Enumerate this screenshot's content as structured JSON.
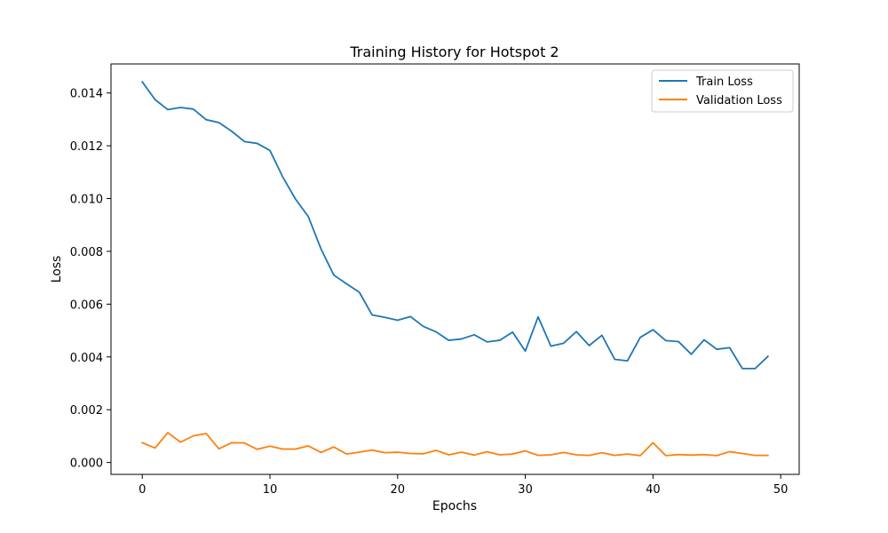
{
  "chart_data": {
    "type": "line",
    "title": "Training History for Hotspot 2",
    "xlabel": "Epochs",
    "ylabel": "Loss",
    "xlim": [
      -2.45,
      51.45
    ],
    "ylim": [
      -0.00045,
      0.0151
    ],
    "xticks": [
      0,
      10,
      20,
      30,
      40,
      50
    ],
    "xtick_labels": [
      "0",
      "10",
      "20",
      "30",
      "40",
      "50"
    ],
    "yticks": [
      0,
      0.002,
      0.004,
      0.006,
      0.008,
      0.01,
      0.012,
      0.014
    ],
    "ytick_labels": [
      "0.000",
      "0.002",
      "0.004",
      "0.006",
      "0.008",
      "0.010",
      "0.012",
      "0.014"
    ],
    "grid": false,
    "legend_position": "top-right",
    "x": [
      0,
      1,
      2,
      3,
      4,
      5,
      6,
      7,
      8,
      9,
      10,
      11,
      12,
      13,
      14,
      15,
      16,
      17,
      18,
      19,
      20,
      21,
      22,
      23,
      24,
      25,
      26,
      27,
      28,
      29,
      30,
      31,
      32,
      33,
      34,
      35,
      36,
      37,
      38,
      39,
      40,
      41,
      42,
      43,
      44,
      45,
      46,
      47,
      48,
      49
    ],
    "series": [
      {
        "name": "Train Loss",
        "color": "#1f77b4",
        "values": [
          0.01442,
          0.01375,
          0.01337,
          0.01345,
          0.01339,
          0.01299,
          0.01288,
          0.01255,
          0.01216,
          0.01209,
          0.01182,
          0.01082,
          0.00998,
          0.00932,
          0.00809,
          0.0071,
          0.00677,
          0.00645,
          0.00559,
          0.0055,
          0.00539,
          0.00553,
          0.00516,
          0.00495,
          0.00463,
          0.00468,
          0.00484,
          0.00457,
          0.00463,
          0.00494,
          0.00422,
          0.00552,
          0.00441,
          0.00452,
          0.00496,
          0.00443,
          0.00482,
          0.00391,
          0.00385,
          0.00474,
          0.00503,
          0.00462,
          0.00458,
          0.0041,
          0.00465,
          0.00429,
          0.00435,
          0.00356,
          0.00356,
          0.00402
        ]
      },
      {
        "name": "Validation Loss",
        "color": "#ff7f0e",
        "values": [
          0.00075,
          0.00055,
          0.00113,
          0.00077,
          0.00101,
          0.0011,
          0.00052,
          0.00075,
          0.00074,
          0.0005,
          0.00062,
          0.00051,
          0.00051,
          0.00063,
          0.00038,
          0.00059,
          0.00032,
          0.00039,
          0.00047,
          0.00037,
          0.00039,
          0.00034,
          0.00033,
          0.00046,
          0.00029,
          0.00039,
          0.00028,
          0.00041,
          0.00029,
          0.00032,
          0.00044,
          0.00027,
          0.00029,
          0.00038,
          0.00029,
          0.00027,
          0.00037,
          0.00027,
          0.00032,
          0.00026,
          0.00075,
          0.00026,
          0.0003,
          0.00028,
          0.0003,
          0.00026,
          0.00041,
          0.00034,
          0.00027,
          0.00027
        ]
      }
    ]
  }
}
